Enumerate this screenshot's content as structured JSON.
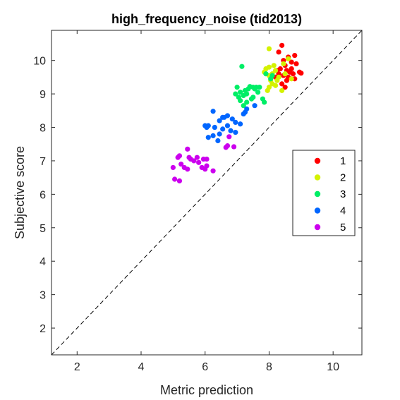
{
  "chart_data": {
    "type": "scatter",
    "title": "high_frequency_noise (tid2013)",
    "xlabel": "Metric prediction",
    "ylabel": "Subjective score",
    "xlim": [
      1.2,
      10.9
    ],
    "ylim": [
      1.2,
      10.9
    ],
    "xticks": [
      2,
      4,
      6,
      8,
      10
    ],
    "yticks": [
      2,
      3,
      4,
      5,
      6,
      7,
      8,
      9,
      10
    ],
    "grid": false,
    "legend_position": "right",
    "reference_line": "y = x (dashed)",
    "series": [
      {
        "name": "1",
        "color": "#ff0000",
        "points": [
          [
            8.4,
            10.45
          ],
          [
            8.3,
            10.25
          ],
          [
            8.8,
            10.15
          ],
          [
            8.45,
            10.0
          ],
          [
            8.6,
            10.1
          ],
          [
            8.7,
            9.95
          ],
          [
            8.85,
            9.9
          ],
          [
            8.5,
            9.85
          ],
          [
            8.35,
            9.75
          ],
          [
            8.55,
            9.7
          ],
          [
            8.65,
            9.65
          ],
          [
            8.75,
            9.6
          ],
          [
            8.45,
            9.55
          ],
          [
            8.95,
            9.65
          ],
          [
            8.6,
            9.5
          ],
          [
            8.3,
            9.6
          ],
          [
            8.8,
            9.45
          ],
          [
            8.4,
            9.3
          ],
          [
            8.5,
            9.2
          ],
          [
            8.7,
            9.75
          ],
          [
            9.0,
            9.62
          ],
          [
            8.2,
            9.5
          ],
          [
            8.55,
            9.4
          ],
          [
            8.25,
            9.7
          ]
        ]
      },
      {
        "name": "2",
        "color": "#d4f200",
        "points": [
          [
            8.0,
            10.35
          ],
          [
            8.6,
            10.05
          ],
          [
            7.9,
            9.75
          ],
          [
            8.0,
            9.8
          ],
          [
            8.2,
            9.7
          ],
          [
            7.85,
            9.65
          ],
          [
            8.1,
            9.6
          ],
          [
            8.0,
            9.55
          ],
          [
            8.3,
            9.5
          ],
          [
            8.05,
            9.4
          ],
          [
            8.1,
            9.3
          ],
          [
            8.0,
            9.2
          ],
          [
            8.2,
            9.25
          ],
          [
            8.4,
            9.1
          ],
          [
            8.5,
            9.6
          ],
          [
            8.7,
            9.45
          ],
          [
            7.95,
            9.1
          ],
          [
            8.15,
            9.85
          ],
          [
            8.45,
            9.9
          ],
          [
            8.25,
            9.4
          ]
        ]
      },
      {
        "name": "3",
        "color": "#00ee66",
        "points": [
          [
            7.15,
            9.82
          ],
          [
            7.9,
            9.6
          ],
          [
            8.1,
            9.55
          ],
          [
            8.05,
            9.45
          ],
          [
            7.6,
            9.2
          ],
          [
            7.4,
            9.22
          ],
          [
            7.5,
            9.2
          ],
          [
            7.35,
            9.15
          ],
          [
            7.25,
            9.1
          ],
          [
            7.65,
            9.05
          ],
          [
            7.3,
            9.0
          ],
          [
            7.1,
            9.05
          ],
          [
            7.0,
            9.2
          ],
          [
            6.95,
            9.0
          ],
          [
            7.2,
            8.95
          ],
          [
            7.5,
            8.9
          ],
          [
            7.8,
            8.85
          ],
          [
            7.1,
            8.8
          ],
          [
            7.3,
            8.75
          ],
          [
            7.45,
            8.85
          ],
          [
            7.2,
            8.65
          ],
          [
            7.85,
            8.75
          ],
          [
            7.55,
            9.15
          ],
          [
            7.05,
            8.9
          ],
          [
            7.7,
            9.2
          ]
        ]
      },
      {
        "name": "4",
        "color": "#0066ff",
        "points": [
          [
            6.25,
            8.48
          ],
          [
            7.55,
            8.65
          ],
          [
            7.3,
            8.55
          ],
          [
            7.25,
            8.45
          ],
          [
            6.7,
            8.35
          ],
          [
            6.55,
            8.3
          ],
          [
            6.85,
            8.25
          ],
          [
            6.45,
            8.2
          ],
          [
            6.95,
            8.15
          ],
          [
            7.1,
            8.1
          ],
          [
            6.7,
            8.05
          ],
          [
            6.1,
            8.05
          ],
          [
            6.05,
            8.0
          ],
          [
            6.3,
            8.0
          ],
          [
            6.55,
            7.95
          ],
          [
            6.8,
            7.9
          ],
          [
            6.95,
            7.85
          ],
          [
            6.45,
            7.8
          ],
          [
            6.25,
            7.75
          ],
          [
            6.1,
            7.7
          ],
          [
            6.4,
            7.6
          ],
          [
            7.2,
            8.4
          ],
          [
            6.6,
            8.3
          ],
          [
            6.0,
            8.05
          ]
        ]
      },
      {
        "name": "5",
        "color": "#cc00ee",
        "points": [
          [
            6.75,
            7.72
          ],
          [
            6.7,
            7.45
          ],
          [
            6.65,
            7.4
          ],
          [
            6.9,
            7.42
          ],
          [
            5.45,
            7.35
          ],
          [
            5.2,
            7.15
          ],
          [
            5.15,
            7.1
          ],
          [
            5.55,
            7.05
          ],
          [
            5.75,
            7.1
          ],
          [
            5.95,
            7.05
          ],
          [
            6.05,
            7.05
          ],
          [
            5.8,
            6.95
          ],
          [
            5.65,
            7.0
          ],
          [
            5.25,
            6.9
          ],
          [
            5.35,
            6.8
          ],
          [
            5.0,
            6.8
          ],
          [
            5.45,
            6.75
          ],
          [
            6.05,
            6.85
          ],
          [
            6.0,
            6.75
          ],
          [
            6.25,
            6.7
          ],
          [
            5.05,
            6.45
          ],
          [
            5.2,
            6.4
          ],
          [
            5.5,
            7.1
          ],
          [
            5.9,
            6.8
          ]
        ]
      }
    ]
  }
}
